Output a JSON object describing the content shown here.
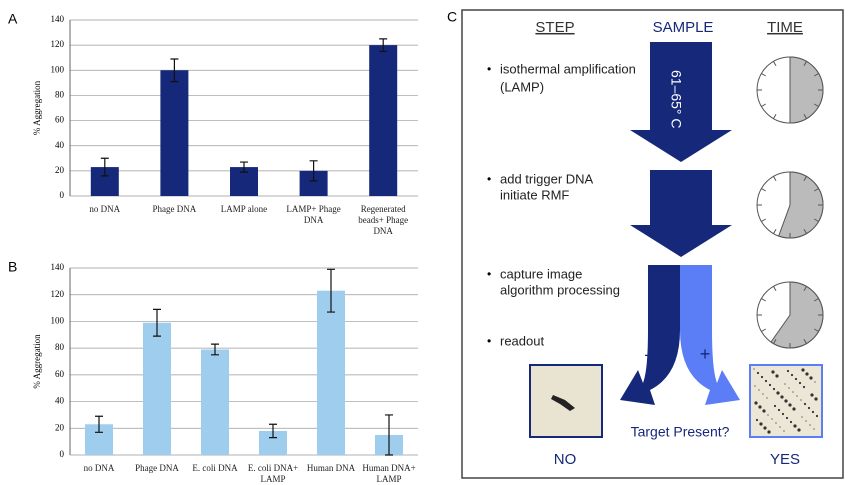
{
  "chart_data": [
    {
      "type": "bar",
      "panel": "A",
      "ylabel": "% Aggregation",
      "categories": [
        "no DNA",
        "Phage DNA",
        "LAMP alone",
        "LAMP+ Phage DNA",
        "Regenerated beads+ Phage DNA"
      ],
      "values": [
        23,
        100,
        23,
        20,
        120
      ],
      "errors": [
        7,
        9,
        4,
        8,
        5
      ],
      "color": "#16287a",
      "ylim": [
        0,
        140
      ],
      "yticks": [
        0,
        20,
        40,
        60,
        80,
        100,
        120,
        140
      ],
      "grid": true
    },
    {
      "type": "bar",
      "panel": "B",
      "ylabel": "% Aggregation",
      "categories": [
        "no DNA",
        "Phage DNA",
        "E. coli DNA",
        "E. coli DNA+ LAMP",
        "Human DNA",
        "Human DNA+ LAMP"
      ],
      "values": [
        23,
        99,
        79,
        18,
        123,
        15
      ],
      "errors": [
        6,
        10,
        4,
        5,
        16,
        15
      ],
      "color": "#9fcdee",
      "ylim": [
        0,
        140
      ],
      "yticks": [
        0,
        20,
        40,
        60,
        80,
        100,
        120,
        140
      ],
      "grid": true
    }
  ],
  "panel_c": {
    "label": "C",
    "headers": [
      "STEP",
      "SAMPLE",
      "TIME"
    ],
    "temperature": "61–65° C",
    "steps": [
      [
        "isothermal amplification",
        "(LAMP)"
      ],
      [
        "add trigger DNA",
        "initiate RMF"
      ],
      [
        "capture image",
        "algorithm processing"
      ],
      [
        "readout"
      ]
    ],
    "signs": [
      "–",
      "+"
    ],
    "question": "Target Present?",
    "outcomes": [
      "NO",
      "YES"
    ]
  }
}
